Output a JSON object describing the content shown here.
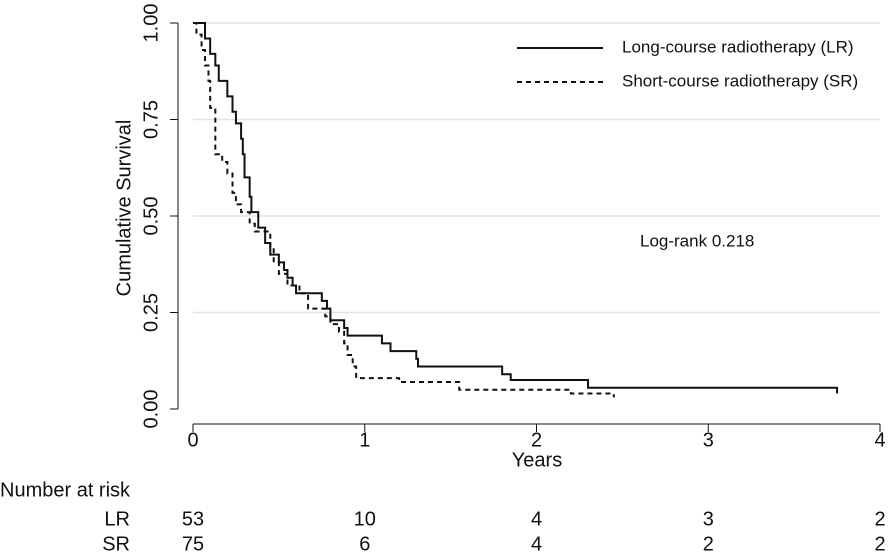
{
  "chart_data": {
    "type": "step",
    "y_label": "Cumulative Survival",
    "x_label": "Years",
    "xlim": [
      0,
      4
    ],
    "xticks": [
      0,
      1,
      2,
      3,
      4
    ],
    "ylim": [
      0,
      1
    ],
    "yticks": [
      {
        "value": 0,
        "label": "0.00"
      },
      {
        "value": 0.25,
        "label": "0.25"
      },
      {
        "value": 0.5,
        "label": "0.50"
      },
      {
        "value": 0.75,
        "label": "0.75"
      },
      {
        "value": 1,
        "label": "1.00"
      }
    ],
    "grid": true,
    "legend": "top-right",
    "annotation": "Log-rank 0.218",
    "series": [
      {
        "name": "Long-course radiotherapy (LR)",
        "color": "#111111",
        "dash": "none",
        "x": [
          0.02,
          0.07,
          0.1,
          0.13,
          0.15,
          0.2,
          0.23,
          0.25,
          0.28,
          0.29,
          0.3,
          0.33,
          0.34,
          0.38,
          0.42,
          0.45,
          0.5,
          0.53,
          0.55,
          0.58,
          0.6,
          0.75,
          0.78,
          0.8,
          0.88,
          0.9,
          1.1,
          1.15,
          1.3,
          1.31,
          1.8,
          1.85,
          2.3,
          3.75
        ],
        "values": [
          1,
          0.96,
          0.92,
          0.89,
          0.85,
          0.81,
          0.77,
          0.74,
          0.7,
          0.66,
          0.6,
          0.55,
          0.51,
          0.47,
          0.43,
          0.4,
          0.38,
          0.36,
          0.34,
          0.32,
          0.3,
          0.28,
          0.26,
          0.23,
          0.21,
          0.19,
          0.17,
          0.15,
          0.13,
          0.11,
          0.09,
          0.075,
          0.055,
          0.04
        ]
      },
      {
        "name": "Short-course radiotherapy (SR)",
        "color": "#111111",
        "dash": "5,4",
        "x": [
          0,
          0.02,
          0.05,
          0.07,
          0.09,
          0.1,
          0.13,
          0.17,
          0.2,
          0.23,
          0.25,
          0.28,
          0.33,
          0.36,
          0.45,
          0.47,
          0.5,
          0.55,
          0.62,
          0.67,
          0.77,
          0.8,
          0.85,
          0.88,
          0.9,
          0.93,
          0.95,
          1.2,
          1.55,
          2.2,
          2.45
        ],
        "values": [
          1,
          0.97,
          0.93,
          0.89,
          0.85,
          0.78,
          0.66,
          0.64,
          0.61,
          0.56,
          0.53,
          0.51,
          0.48,
          0.46,
          0.42,
          0.38,
          0.35,
          0.32,
          0.3,
          0.26,
          0.24,
          0.22,
          0.2,
          0.17,
          0.14,
          0.11,
          0.08,
          0.07,
          0.05,
          0.04,
          0.03
        ]
      }
    ],
    "risk_table": {
      "title": "Number at risk",
      "rows": [
        {
          "name": "LR",
          "values": [
            53,
            10,
            4,
            3,
            2
          ]
        },
        {
          "name": "SR",
          "values": [
            75,
            6,
            4,
            2,
            2
          ]
        }
      ]
    }
  }
}
